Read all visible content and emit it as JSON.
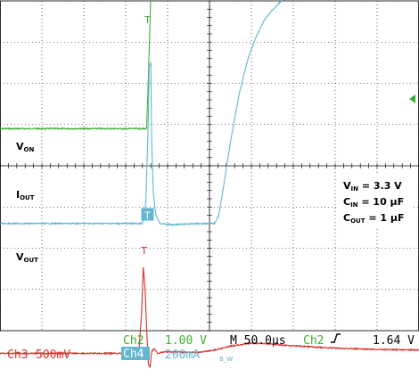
{
  "chart_data": {
    "type": "line",
    "title": "",
    "xlabel": "",
    "ylabel": "",
    "grid": true,
    "grid_divisions": {
      "x": 10,
      "y": 8
    },
    "xlim_us": [
      -236,
      264
    ],
    "timebase_us_per_div": 50,
    "series": [
      {
        "name_main": "V",
        "name_sub": "ON",
        "channel": "Ch2",
        "color": "#3cb035",
        "scale_per_div": "1.00 V",
        "unit": "V",
        "ground_div": 3.1,
        "points": [
          [
            -236,
            0
          ],
          [
            -150,
            0
          ],
          [
            -100,
            0
          ],
          [
            -70,
            0
          ],
          [
            -61,
            0
          ],
          [
            -59,
            1.2
          ],
          [
            -57,
            2.6
          ],
          [
            -55,
            3.9
          ],
          [
            -53,
            3.3
          ],
          [
            -51,
            3.6
          ],
          [
            -48,
            3.4
          ],
          [
            -45,
            3.5
          ],
          [
            -40,
            3.47
          ],
          [
            0,
            3.46
          ],
          [
            50,
            3.44
          ],
          [
            100,
            3.41
          ],
          [
            150,
            3.39
          ],
          [
            200,
            3.37
          ],
          [
            264,
            3.36
          ]
        ]
      },
      {
        "name_main": "I",
        "name_sub": "OUT",
        "channel": "Ch4",
        "color": "#62b6d0",
        "scale_per_div": "200mA",
        "unit": "mA",
        "ground_div": 5.4,
        "points": [
          [
            -236,
            0
          ],
          [
            -150,
            0
          ],
          [
            -66,
            0
          ],
          [
            -62,
            100
          ],
          [
            -59,
            500
          ],
          [
            -58,
            760
          ],
          [
            -56,
            780
          ],
          [
            -55,
            400
          ],
          [
            -53,
            150
          ],
          [
            -50,
            40
          ],
          [
            -45,
            0
          ],
          [
            -30,
            -6
          ],
          [
            0,
            0
          ],
          [
            20,
            0
          ],
          [
            25,
            40
          ],
          [
            30,
            160
          ],
          [
            40,
            420
          ],
          [
            50,
            640
          ],
          [
            60,
            800
          ],
          [
            70,
            910
          ],
          [
            80,
            990
          ],
          [
            90,
            1040
          ],
          [
            100,
            1080
          ],
          [
            120,
            1120
          ],
          [
            140,
            1140
          ],
          [
            170,
            1150
          ],
          [
            200,
            1155
          ],
          [
            264,
            1155
          ]
        ]
      },
      {
        "name_main": "V",
        "name_sub": "OUT",
        "channel": "Ch3",
        "color": "#d4312e",
        "scale_per_div": "500mV",
        "unit": "V",
        "ground_div": 8.55,
        "points": [
          [
            -236,
            0
          ],
          [
            -150,
            0
          ],
          [
            -100,
            0
          ],
          [
            -75,
            0
          ],
          [
            -70,
            0.05
          ],
          [
            -67,
            0.5
          ],
          [
            -65,
            1.05
          ],
          [
            -63,
            0.8
          ],
          [
            -61,
            0.3
          ],
          [
            -59,
            -0.12
          ],
          [
            -57,
            -0.18
          ],
          [
            -55,
            0.02
          ],
          [
            -52,
            0.06
          ],
          [
            -48,
            0
          ],
          [
            -40,
            0.02
          ],
          [
            0,
            0.01
          ],
          [
            20,
            0.04
          ],
          [
            40,
            0.09
          ],
          [
            60,
            0.12
          ],
          [
            80,
            0.12
          ],
          [
            100,
            0.1
          ],
          [
            150,
            0.07
          ],
          [
            200,
            0.05
          ],
          [
            264,
            0.04
          ]
        ]
      }
    ],
    "series_labels": [
      {
        "main": "V",
        "sub": "ON"
      },
      {
        "main": "I",
        "sub": "OUT"
      },
      {
        "main": "V",
        "sub": "OUT"
      }
    ],
    "markers": [
      {
        "channel": "Ch2",
        "glyph": "T",
        "time_us": -60,
        "level_div": 0.45,
        "color": "#3cb035"
      },
      {
        "channel": "Ch4",
        "glyph": "T",
        "time_us": -60,
        "level_div": 5.2,
        "color": "#62b6d0"
      },
      {
        "channel": "Ch3",
        "glyph": "T",
        "time_us": -64,
        "level_div": 6.05,
        "color": "#d4312e"
      }
    ],
    "annotation_box": {
      "lines": [
        {
          "main": "V",
          "sub": "IN",
          "value": " = 3.3 V"
        },
        {
          "main": "C",
          "sub": "IN",
          "value": " = 10 µF"
        },
        {
          "main": "C",
          "sub": "OUT",
          "value": " = 1 µF"
        }
      ]
    }
  },
  "status_bar": {
    "ch3_label": "Ch3",
    "ch3_scale": "500mV",
    "ch2_label": "Ch2",
    "ch2_scale": "1.00 V",
    "ch4_label": "Ch4",
    "ch4_scale": "200mA",
    "bw_mark": "B_W",
    "timebase": "M 50.0µs",
    "trigger_channel": "Ch2",
    "trigger_slope_icon": "rising-edge-icon",
    "trigger_level": "1.64 V"
  },
  "colors": {
    "ch2": "#3cb035",
    "ch3": "#d4312e",
    "ch4": "#62b6d0",
    "grid": "#000000",
    "background": "#ffffff"
  }
}
